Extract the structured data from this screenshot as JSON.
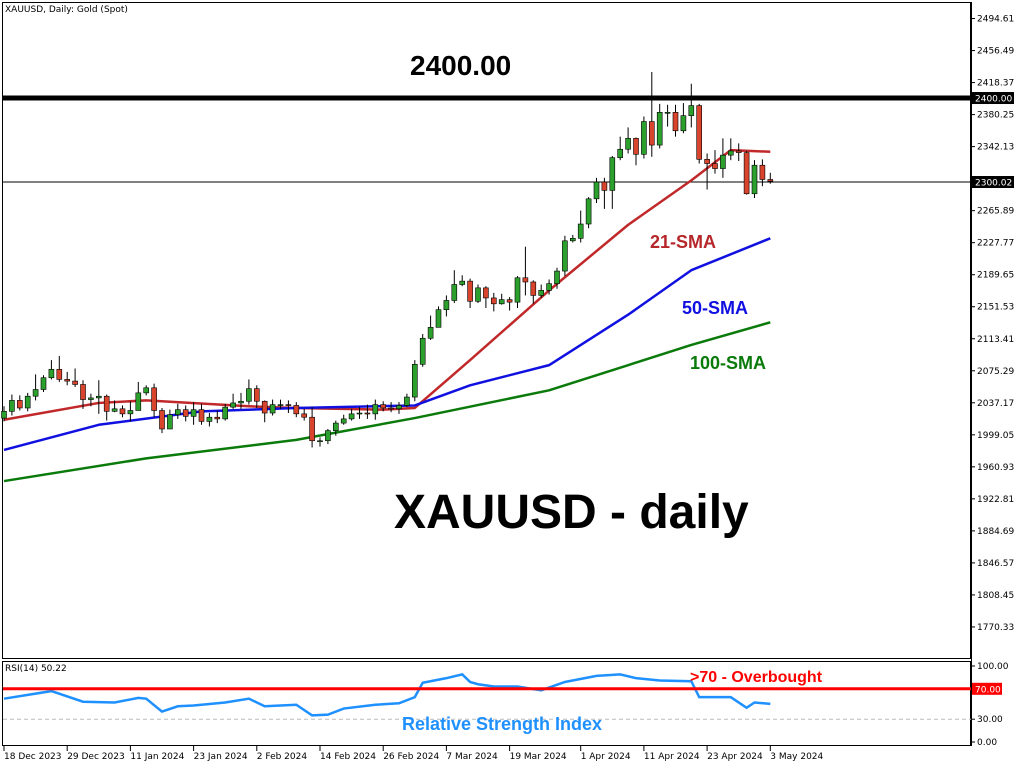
{
  "chart_data": {
    "type": "candlestick",
    "title": "XAUUSD, Daily:  Gold (Spot)",
    "colors": {
      "bull": "#2ca02c",
      "bear": "#d9442c",
      "sma21": "#c0282a",
      "sma50": "#1010e0",
      "sma100": "#0a7a0a",
      "rsi": "#1e90ff",
      "rsi_level": "#ff0000"
    },
    "ylim": [
      1750,
      2510
    ],
    "y_ticks": [
      "2494.61",
      "2456.49",
      "2418.37",
      "2380.25",
      "2342.13",
      "2265.89",
      "2227.77",
      "2189.65",
      "2151.53",
      "2113.41",
      "2075.29",
      "2037.17",
      "1999.05",
      "1960.93",
      "1922.81",
      "1884.69",
      "1846.57",
      "1808.45",
      "1770.33"
    ],
    "horizontal_lines": [
      {
        "value": 2400.0,
        "label": "2400.00",
        "thick": true
      },
      {
        "value": 2300.02,
        "label": "2300.02",
        "thick": false
      }
    ],
    "x_ticks": [
      {
        "label": "18 Dec 2023",
        "date": "2023-12-18"
      },
      {
        "label": "29 Dec 2023",
        "date": "2023-12-29"
      },
      {
        "label": "11 Jan 2024",
        "date": "2024-01-11"
      },
      {
        "label": "23 Jan 2024",
        "date": "2024-01-23"
      },
      {
        "label": "2 Feb 2024",
        "date": "2024-02-02"
      },
      {
        "label": "14 Feb 2024",
        "date": "2024-02-14"
      },
      {
        "label": "26 Feb 2024",
        "date": "2024-02-26"
      },
      {
        "label": "7 Mar 2024",
        "date": "2024-03-07"
      },
      {
        "label": "19 Mar 2024",
        "date": "2024-03-19"
      },
      {
        "label": "1 Apr 2024",
        "date": "2024-04-01"
      },
      {
        "label": "11 Apr 2024",
        "date": "2024-04-11"
      },
      {
        "label": "23 Apr 2024",
        "date": "2024-04-23"
      },
      {
        "label": "3 May 2024",
        "date": "2024-05-03"
      }
    ],
    "candles_columns": [
      "date",
      "open",
      "high",
      "low",
      "close"
    ],
    "candles": [
      [
        "2023-12-18",
        2019,
        2033,
        2015,
        2027
      ],
      [
        "2023-12-19",
        2027,
        2047,
        2022,
        2040
      ],
      [
        "2023-12-20",
        2040,
        2046,
        2028,
        2031
      ],
      [
        "2023-12-21",
        2031,
        2049,
        2027,
        2045
      ],
      [
        "2023-12-22",
        2045,
        2071,
        2040,
        2053
      ],
      [
        "2023-12-26",
        2053,
        2070,
        2050,
        2067
      ],
      [
        "2023-12-27",
        2067,
        2088,
        2065,
        2077
      ],
      [
        "2023-12-28",
        2077,
        2093,
        2062,
        2065
      ],
      [
        "2023-12-29",
        2065,
        2074,
        2058,
        2063
      ],
      [
        "2024-01-02",
        2063,
        2078,
        2056,
        2059
      ],
      [
        "2024-01-03",
        2059,
        2064,
        2030,
        2041
      ],
      [
        "2024-01-04",
        2041,
        2048,
        2033,
        2043
      ],
      [
        "2024-01-05",
        2043,
        2064,
        2024,
        2045
      ],
      [
        "2024-01-08",
        2045,
        2047,
        2016,
        2027
      ],
      [
        "2024-01-09",
        2027,
        2040,
        2026,
        2030
      ],
      [
        "2024-01-10",
        2030,
        2034,
        2020,
        2024
      ],
      [
        "2024-01-11",
        2024,
        2039,
        2015,
        2028
      ],
      [
        "2024-01-12",
        2028,
        2062,
        2028,
        2049
      ],
      [
        "2024-01-15",
        2049,
        2058,
        2046,
        2055
      ],
      [
        "2024-01-16",
        2055,
        2060,
        2020,
        2028
      ],
      [
        "2024-01-17",
        2028,
        2031,
        2001,
        2006
      ],
      [
        "2024-01-18",
        2006,
        2029,
        2006,
        2023
      ],
      [
        "2024-01-19",
        2023,
        2036,
        2018,
        2029
      ],
      [
        "2024-01-22",
        2029,
        2034,
        2015,
        2021
      ],
      [
        "2024-01-23",
        2021,
        2038,
        2011,
        2029
      ],
      [
        "2024-01-24",
        2029,
        2036,
        2011,
        2015
      ],
      [
        "2024-01-25",
        2015,
        2025,
        2009,
        2020
      ],
      [
        "2024-01-26",
        2020,
        2028,
        2013,
        2018
      ],
      [
        "2024-01-29",
        2018,
        2036,
        2016,
        2032
      ],
      [
        "2024-01-30",
        2032,
        2048,
        2030,
        2037
      ],
      [
        "2024-01-31",
        2037,
        2049,
        2030,
        2039
      ],
      [
        "2024-02-01",
        2039,
        2065,
        2035,
        2054
      ],
      [
        "2024-02-02",
        2054,
        2058,
        2031,
        2039
      ],
      [
        "2024-02-05",
        2039,
        2040,
        2014,
        2025
      ],
      [
        "2024-02-06",
        2025,
        2041,
        2022,
        2035
      ],
      [
        "2024-02-07",
        2035,
        2041,
        2030,
        2035
      ],
      [
        "2024-02-08",
        2035,
        2040,
        2025,
        2034
      ],
      [
        "2024-02-09",
        2034,
        2038,
        2020,
        2024
      ],
      [
        "2024-02-12",
        2024,
        2030,
        2016,
        2020
      ],
      [
        "2024-02-13",
        2020,
        2032,
        1984,
        1992
      ],
      [
        "2024-02-14",
        1992,
        1996,
        1985,
        1992
      ],
      [
        "2024-02-15",
        1992,
        2006,
        1988,
        2004
      ],
      [
        "2024-02-16",
        2004,
        2016,
        1998,
        2013
      ],
      [
        "2024-02-19",
        2013,
        2023,
        2011,
        2018
      ],
      [
        "2024-02-20",
        2018,
        2030,
        2016,
        2024
      ],
      [
        "2024-02-21",
        2024,
        2032,
        2018,
        2025
      ],
      [
        "2024-02-22",
        2025,
        2035,
        2018,
        2024
      ],
      [
        "2024-02-23",
        2024,
        2041,
        2017,
        2035
      ],
      [
        "2024-02-26",
        2035,
        2039,
        2027,
        2031
      ],
      [
        "2024-02-27",
        2031,
        2038,
        2026,
        2030
      ],
      [
        "2024-02-28",
        2030,
        2038,
        2024,
        2034
      ],
      [
        "2024-02-29",
        2034,
        2048,
        2032,
        2044
      ],
      [
        "2024-03-01",
        2044,
        2088,
        2039,
        2083
      ],
      [
        "2024-03-04",
        2083,
        2119,
        2080,
        2114
      ],
      [
        "2024-03-05",
        2114,
        2141,
        2112,
        2127
      ],
      [
        "2024-03-06",
        2127,
        2152,
        2127,
        2148
      ],
      [
        "2024-03-07",
        2148,
        2165,
        2140,
        2159
      ],
      [
        "2024-03-08",
        2159,
        2195,
        2156,
        2178
      ],
      [
        "2024-03-11",
        2178,
        2189,
        2176,
        2182
      ],
      [
        "2024-03-12",
        2182,
        2185,
        2150,
        2158
      ],
      [
        "2024-03-13",
        2158,
        2178,
        2156,
        2174
      ],
      [
        "2024-03-14",
        2174,
        2176,
        2150,
        2162
      ],
      [
        "2024-03-15",
        2162,
        2168,
        2146,
        2155
      ],
      [
        "2024-03-18",
        2155,
        2167,
        2154,
        2160
      ],
      [
        "2024-03-19",
        2160,
        2163,
        2147,
        2157
      ],
      [
        "2024-03-20",
        2157,
        2188,
        2150,
        2186
      ],
      [
        "2024-03-21",
        2186,
        2223,
        2165,
        2181
      ],
      [
        "2024-03-22",
        2181,
        2183,
        2155,
        2165
      ],
      [
        "2024-03-25",
        2165,
        2178,
        2162,
        2171
      ],
      [
        "2024-03-26",
        2171,
        2184,
        2166,
        2179
      ],
      [
        "2024-03-27",
        2179,
        2198,
        2173,
        2194
      ],
      [
        "2024-03-28",
        2194,
        2236,
        2188,
        2230
      ],
      [
        "2024-03-29",
        2230,
        2237,
        2228,
        2233
      ],
      [
        "2024-04-01",
        2233,
        2266,
        2228,
        2250
      ],
      [
        "2024-04-02",
        2250,
        2282,
        2245,
        2280
      ],
      [
        "2024-04-03",
        2280,
        2305,
        2275,
        2300
      ],
      [
        "2024-04-04",
        2300,
        2305,
        2268,
        2290
      ],
      [
        "2024-04-05",
        2290,
        2331,
        2268,
        2329
      ],
      [
        "2024-04-08",
        2329,
        2354,
        2326,
        2339
      ],
      [
        "2024-04-09",
        2339,
        2365,
        2334,
        2352
      ],
      [
        "2024-04-10",
        2352,
        2353,
        2320,
        2333
      ],
      [
        "2024-04-11",
        2333,
        2378,
        2328,
        2372
      ],
      [
        "2024-04-12",
        2372,
        2431,
        2330,
        2344
      ],
      [
        "2024-04-15",
        2344,
        2393,
        2340,
        2383
      ],
      [
        "2024-04-16",
        2383,
        2392,
        2366,
        2383
      ],
      [
        "2024-04-17",
        2383,
        2392,
        2354,
        2361
      ],
      [
        "2024-04-18",
        2361,
        2394,
        2358,
        2379
      ],
      [
        "2024-04-19",
        2379,
        2417,
        2365,
        2391
      ],
      [
        "2024-04-22",
        2391,
        2393,
        2322,
        2327
      ],
      [
        "2024-04-23",
        2327,
        2334,
        2291,
        2322
      ],
      [
        "2024-04-24",
        2322,
        2338,
        2310,
        2316
      ],
      [
        "2024-04-25",
        2316,
        2352,
        2305,
        2332
      ],
      [
        "2024-04-26",
        2332,
        2352,
        2326,
        2337
      ],
      [
        "2024-04-29",
        2337,
        2346,
        2325,
        2335
      ],
      [
        "2024-04-30",
        2335,
        2337,
        2285,
        2286
      ],
      [
        "2024-05-01",
        2286,
        2326,
        2281,
        2320
      ],
      [
        "2024-05-02",
        2320,
        2327,
        2295,
        2303
      ],
      [
        "2024-05-03",
        2303,
        2311,
        2298,
        2301
      ]
    ],
    "sma": [
      {
        "name": "21-SMA",
        "color_key": "sma21",
        "points": [
          [
            "2023-12-18",
            2017
          ],
          [
            "2024-01-05",
            2037
          ],
          [
            "2024-01-15",
            2040
          ],
          [
            "2024-02-01",
            2033
          ],
          [
            "2024-02-09",
            2031
          ],
          [
            "2024-02-26",
            2029
          ],
          [
            "2024-03-01",
            2031
          ],
          [
            "2024-03-12",
            2088
          ],
          [
            "2024-03-26",
            2171
          ],
          [
            "2024-04-09",
            2249
          ],
          [
            "2024-04-19",
            2302
          ],
          [
            "2024-04-26",
            2338
          ],
          [
            "2024-05-03",
            2336
          ]
        ]
      },
      {
        "name": "50-SMA",
        "color_key": "sma50",
        "points": [
          [
            "2023-12-18",
            1981
          ],
          [
            "2024-01-05",
            2011
          ],
          [
            "2024-01-24",
            2027
          ],
          [
            "2024-02-09",
            2031
          ],
          [
            "2024-03-01",
            2034
          ],
          [
            "2024-03-12",
            2058
          ],
          [
            "2024-03-26",
            2082
          ],
          [
            "2024-04-09",
            2142
          ],
          [
            "2024-04-19",
            2195
          ],
          [
            "2024-05-03",
            2233
          ]
        ]
      },
      {
        "name": "100-SMA",
        "color_key": "sma100",
        "points": [
          [
            "2023-12-18",
            1944
          ],
          [
            "2024-01-15",
            1971
          ],
          [
            "2024-02-09",
            1993
          ],
          [
            "2024-03-01",
            2019
          ],
          [
            "2024-03-26",
            2052
          ],
          [
            "2024-04-09",
            2082
          ],
          [
            "2024-04-19",
            2106
          ],
          [
            "2024-05-03",
            2133
          ]
        ]
      }
    ],
    "annotations": {
      "level_label": "2400.00",
      "sma21_label": "21-SMA",
      "sma50_label": "50-SMA",
      "sma100_label": "100-SMA",
      "chart_caption": "XAUUSD - daily",
      "overbought_label": ">70 - Overbought",
      "rsi_caption": "Relative Strength Index"
    },
    "rsi": {
      "title": "RSI(14) 50.22",
      "period": 14,
      "last_value": 50.22,
      "ylim": [
        0,
        100
      ],
      "y_ticks": [
        "100.00",
        "30.00",
        "0.00"
      ],
      "overbought_level": 70,
      "overbought_tick": "70.00",
      "oversold_level": 30,
      "points": [
        [
          0,
          57
        ],
        [
          6,
          67
        ],
        [
          10,
          53
        ],
        [
          14,
          52
        ],
        [
          17,
          58
        ],
        [
          18,
          57
        ],
        [
          20,
          40
        ],
        [
          22,
          47
        ],
        [
          24,
          48
        ],
        [
          28,
          52
        ],
        [
          31,
          57
        ],
        [
          33,
          47
        ],
        [
          37,
          49
        ],
        [
          39,
          35
        ],
        [
          41,
          36
        ],
        [
          43,
          44
        ],
        [
          47,
          49
        ],
        [
          50,
          51
        ],
        [
          52,
          59
        ],
        [
          53,
          78
        ],
        [
          56,
          84
        ],
        [
          58,
          89
        ],
        [
          59,
          79
        ],
        [
          60,
          76
        ],
        [
          62,
          73
        ],
        [
          65,
          73
        ],
        [
          68,
          68
        ],
        [
          71,
          79
        ],
        [
          75,
          87
        ],
        [
          78,
          89
        ],
        [
          80,
          84
        ],
        [
          83,
          81
        ],
        [
          87,
          80
        ],
        [
          88,
          59
        ],
        [
          92,
          59
        ],
        [
          94,
          45
        ],
        [
          95,
          52
        ],
        [
          97,
          50.22
        ]
      ]
    }
  }
}
